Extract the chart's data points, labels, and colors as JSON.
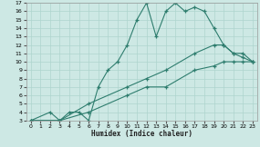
{
  "title": "",
  "xlabel": "Humidex (Indice chaleur)",
  "bg_color": "#cde8e4",
  "line_color": "#2e7d6e",
  "grid_color": "#aed4ce",
  "xlim": [
    -0.5,
    23.5
  ],
  "ylim": [
    3,
    17
  ],
  "xticks": [
    0,
    1,
    2,
    3,
    4,
    5,
    6,
    7,
    8,
    9,
    10,
    11,
    12,
    13,
    14,
    15,
    16,
    17,
    18,
    19,
    20,
    21,
    22,
    23
  ],
  "yticks": [
    3,
    4,
    5,
    6,
    7,
    8,
    9,
    10,
    11,
    12,
    13,
    14,
    15,
    16,
    17
  ],
  "series": [
    {
      "x": [
        0,
        2,
        3,
        4,
        5,
        6,
        7,
        8,
        9,
        10,
        11,
        12,
        13,
        14,
        15,
        16,
        17,
        18,
        19,
        20,
        21,
        22,
        23
      ],
      "y": [
        3,
        4,
        3,
        4,
        4,
        3,
        7,
        9,
        10,
        12,
        15,
        17,
        13,
        16,
        17,
        16,
        16.5,
        16,
        14,
        12,
        11,
        10.5,
        10
      ]
    },
    {
      "x": [
        0,
        3,
        6,
        10,
        12,
        14,
        17,
        19,
        20,
        21,
        22,
        23
      ],
      "y": [
        3,
        3,
        5,
        7,
        8,
        9,
        11,
        12,
        12,
        11,
        11,
        10
      ]
    },
    {
      "x": [
        0,
        3,
        6,
        10,
        12,
        14,
        17,
        19,
        20,
        21,
        22,
        23
      ],
      "y": [
        3,
        3,
        4,
        6,
        7,
        7,
        9,
        9.5,
        10,
        10,
        10,
        10
      ]
    }
  ]
}
